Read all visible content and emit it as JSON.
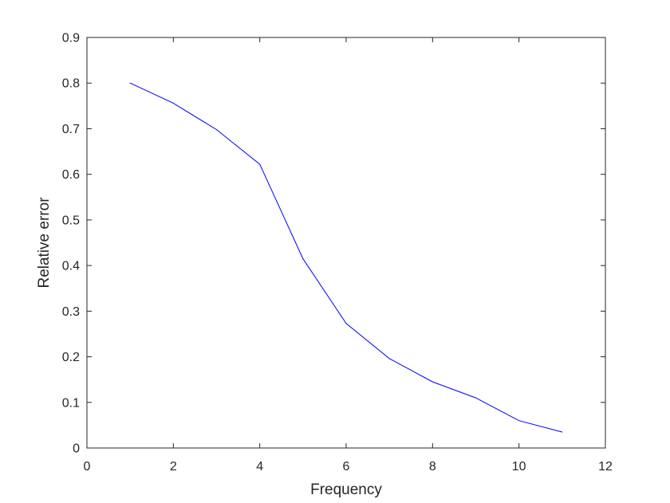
{
  "chart_data": {
    "type": "line",
    "title": "",
    "xlabel": "Frequency",
    "ylabel": "Relative error",
    "xlim": [
      0,
      12
    ],
    "ylim": [
      0,
      0.9
    ],
    "xticks": [
      0,
      2,
      4,
      6,
      8,
      10,
      12
    ],
    "yticks": [
      0,
      0.1,
      0.2,
      0.3,
      0.4,
      0.5,
      0.6,
      0.7,
      0.8,
      0.9
    ],
    "xtick_labels": [
      "0",
      "2",
      "4",
      "6",
      "8",
      "10",
      "12"
    ],
    "ytick_labels": [
      "0",
      "0.1",
      "0.2",
      "0.3",
      "0.4",
      "0.5",
      "0.6",
      "0.7",
      "0.8",
      "0.9"
    ],
    "grid": false,
    "box": true,
    "series": [
      {
        "color": "#0000ff",
        "x": [
          1,
          2,
          3,
          4,
          5,
          6,
          7,
          8,
          9,
          10,
          11
        ],
        "y": [
          0.8,
          0.756,
          0.698,
          0.622,
          0.415,
          0.273,
          0.196,
          0.145,
          0.11,
          0.06,
          0.035
        ]
      }
    ]
  }
}
